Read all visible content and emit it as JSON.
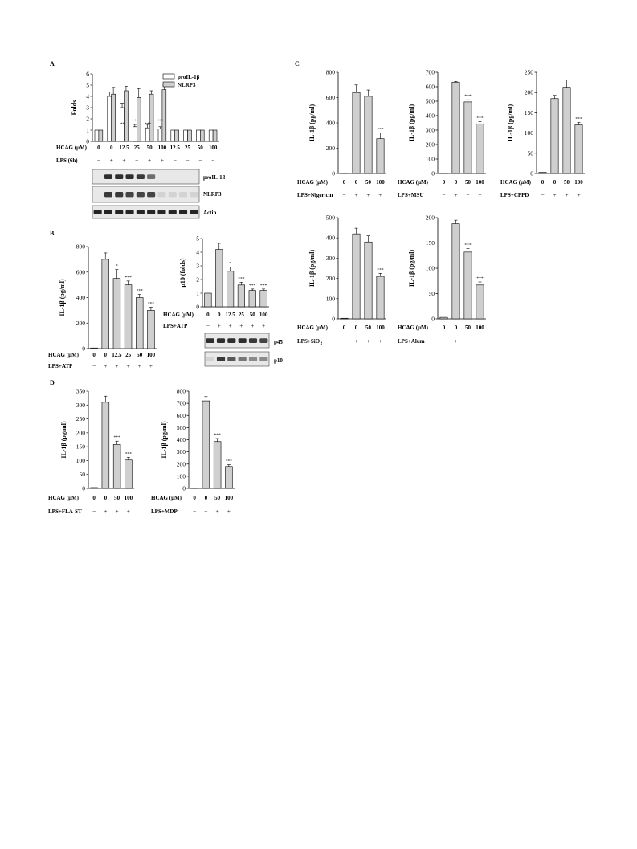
{
  "chart_data": [
    {
      "panel": "A",
      "type": "bar",
      "ylabel": "Folds",
      "ylim": [
        0,
        6
      ],
      "yticks": [
        0,
        1,
        2,
        3,
        4,
        5,
        6
      ],
      "legend": [
        "proIL-1β",
        "NLRP3"
      ],
      "legend_position": "top-right",
      "condition_labels": [
        "HCAG (μM)",
        "LPS (6h)"
      ],
      "categories": [
        "0",
        "0",
        "12.5",
        "25",
        "50",
        "100",
        "12.5",
        "25",
        "50",
        "100"
      ],
      "lps": [
        "−",
        "+",
        "+",
        "+",
        "+",
        "+",
        "−",
        "−",
        "−",
        "−"
      ],
      "series": [
        {
          "name": "proIL-1β",
          "values": [
            1,
            4.0,
            3.0,
            1.3,
            1.2,
            1.1,
            1.0,
            1.0,
            1.0,
            1.0
          ],
          "errors": [
            0,
            0.4,
            0.4,
            0.2,
            0.3,
            0.2,
            0,
            0,
            0,
            0
          ]
        },
        {
          "name": "NLRP3",
          "values": [
            1,
            4.2,
            4.5,
            3.9,
            4.2,
            4.6,
            1.0,
            1.0,
            1.0,
            1.0
          ],
          "errors": [
            0,
            0.6,
            0.4,
            0.8,
            0.3,
            0.4,
            0,
            0,
            0,
            0
          ]
        }
      ],
      "annotations": [
        "**",
        "***",
        "***",
        "***"
      ],
      "blot_labels": [
        "proIL-1β",
        "NLRP3",
        "Actin"
      ]
    },
    {
      "panel": "B",
      "type": "bar",
      "ylabel": "IL-1β (pg/ml)",
      "ylim": [
        0,
        800
      ],
      "yticks": [
        0,
        200,
        400,
        600,
        800
      ],
      "condition_labels": [
        "HCAG (μM)",
        "LPS+ATP"
      ],
      "categories": [
        "0",
        "0",
        "12.5",
        "25",
        "50",
        "100"
      ],
      "stimulus": [
        "−",
        "+",
        "+",
        "+",
        "+",
        "+"
      ],
      "values": [
        5,
        700,
        550,
        500,
        400,
        300
      ],
      "errors": [
        0,
        50,
        70,
        30,
        25,
        25
      ],
      "annotations": [
        "",
        "",
        "*",
        "***",
        "***",
        "***"
      ]
    },
    {
      "panel": "B",
      "type": "bar",
      "ylabel": "p10 (folds)",
      "ylim": [
        0,
        5
      ],
      "yticks": [
        0,
        1,
        2,
        3,
        4,
        5
      ],
      "condition_labels": [
        "HCAG (μM)",
        "LPS+ATP"
      ],
      "categories": [
        "0",
        "0",
        "12.5",
        "25",
        "50",
        "100"
      ],
      "stimulus": [
        "−",
        "+",
        "+",
        "+",
        "+",
        "+"
      ],
      "values": [
        1,
        4.2,
        2.6,
        1.6,
        1.2,
        1.2
      ],
      "errors": [
        0,
        0.45,
        0.3,
        0.2,
        0.1,
        0.1
      ],
      "annotations": [
        "",
        "",
        "*",
        "***",
        "***",
        "***"
      ],
      "blot_labels": [
        "p45",
        "p10"
      ]
    },
    {
      "panel": "C",
      "type": "bar",
      "ylabel": "IL-1β (pg/ml)",
      "ylim": [
        0,
        800
      ],
      "yticks": [
        0,
        200,
        400,
        600,
        800
      ],
      "condition_labels": [
        "HCAG (μM)",
        "LPS+Nigericin"
      ],
      "categories": [
        "0",
        "0",
        "50",
        "100"
      ],
      "stimulus": [
        "−",
        "+",
        "+",
        "+"
      ],
      "values": [
        3,
        640,
        610,
        275
      ],
      "errors": [
        0,
        60,
        50,
        45
      ],
      "annotations": [
        "",
        "",
        "",
        "***"
      ]
    },
    {
      "panel": "C",
      "type": "bar",
      "ylabel": "IL-1β (pg/ml)",
      "ylim": [
        0,
        700
      ],
      "yticks": [
        0,
        100,
        200,
        300,
        400,
        500,
        600,
        700
      ],
      "condition_labels": [
        "HCAG (μM)",
        "LPS+MSU"
      ],
      "categories": [
        "0",
        "0",
        "50",
        "100"
      ],
      "stimulus": [
        "−",
        "+",
        "+",
        "+"
      ],
      "values": [
        3,
        632,
        495,
        343
      ],
      "errors": [
        0,
        5,
        15,
        15
      ],
      "annotations": [
        "",
        "",
        "***",
        "***"
      ]
    },
    {
      "panel": "C",
      "type": "bar",
      "ylabel": "IL-1β (pg/ml)",
      "ylim": [
        0,
        250
      ],
      "yticks": [
        0,
        50,
        100,
        150,
        200,
        250
      ],
      "condition_labels": [
        "HCAG (μM)",
        "LPS+CPPD"
      ],
      "categories": [
        "0",
        "0",
        "50",
        "100"
      ],
      "stimulus": [
        "−",
        "+",
        "+",
        "+"
      ],
      "values": [
        3,
        185,
        213,
        120
      ],
      "errors": [
        0,
        8,
        18,
        6
      ],
      "annotations": [
        "",
        "",
        "",
        "***"
      ]
    },
    {
      "panel": "C",
      "type": "bar",
      "ylabel": "IL-1β (pg/ml)",
      "ylim": [
        0,
        500
      ],
      "yticks": [
        0,
        100,
        200,
        300,
        400,
        500
      ],
      "condition_labels": [
        "HCAG (μM)",
        "LPS+SiO",
        "2"
      ],
      "categories": [
        "0",
        "0",
        "50",
        "100"
      ],
      "stimulus": [
        "−",
        "+",
        "+",
        "+"
      ],
      "values": [
        3,
        420,
        380,
        210
      ],
      "errors": [
        0,
        28,
        30,
        15
      ],
      "annotations": [
        "",
        "",
        "",
        "***"
      ]
    },
    {
      "panel": "C",
      "type": "bar",
      "ylabel": "IL-1β (pg/ml)",
      "ylim": [
        0,
        200
      ],
      "yticks": [
        0,
        50,
        100,
        150,
        200
      ],
      "condition_labels": [
        "HCAG (μM)",
        "LPS+Alum"
      ],
      "categories": [
        "0",
        "0",
        "50",
        "100"
      ],
      "stimulus": [
        "−",
        "+",
        "+",
        "+"
      ],
      "values": [
        3,
        188,
        132,
        67
      ],
      "errors": [
        0,
        7,
        7,
        6
      ],
      "annotations": [
        "",
        "",
        "***",
        "***"
      ]
    },
    {
      "panel": "D",
      "type": "bar",
      "ylabel": "IL-1β (pg/ml)",
      "ylim": [
        0,
        350
      ],
      "yticks": [
        0,
        50,
        100,
        150,
        200,
        250,
        300,
        350
      ],
      "condition_labels": [
        "HCAG (μM)",
        "LPS+FLA-ST"
      ],
      "categories": [
        "0",
        "0",
        "50",
        "100"
      ],
      "stimulus": [
        "−",
        "+",
        "+",
        "+"
      ],
      "values": [
        3,
        310,
        158,
        102
      ],
      "errors": [
        0,
        22,
        12,
        10
      ],
      "annotations": [
        "",
        "",
        "***",
        "***"
      ]
    },
    {
      "panel": "D",
      "type": "bar",
      "ylabel": "IL-1β (pg/ml)",
      "ylim": [
        0,
        800
      ],
      "yticks": [
        0,
        100,
        200,
        300,
        400,
        500,
        600,
        700,
        800
      ],
      "condition_labels": [
        "HCAG (μM)",
        "LPS+MDP"
      ],
      "categories": [
        "0",
        "0",
        "50",
        "100"
      ],
      "stimulus": [
        "−",
        "+",
        "+",
        "+"
      ],
      "values": [
        3,
        720,
        385,
        180
      ],
      "errors": [
        0,
        35,
        25,
        15
      ],
      "annotations": [
        "",
        "",
        "***",
        "***"
      ]
    }
  ],
  "colors": {
    "bar": "#cfcfcf",
    "bar_alt": "#ffffff",
    "stroke": "#000000",
    "blot_bg": "#e8e8e8",
    "band": "#1a1a1a"
  }
}
